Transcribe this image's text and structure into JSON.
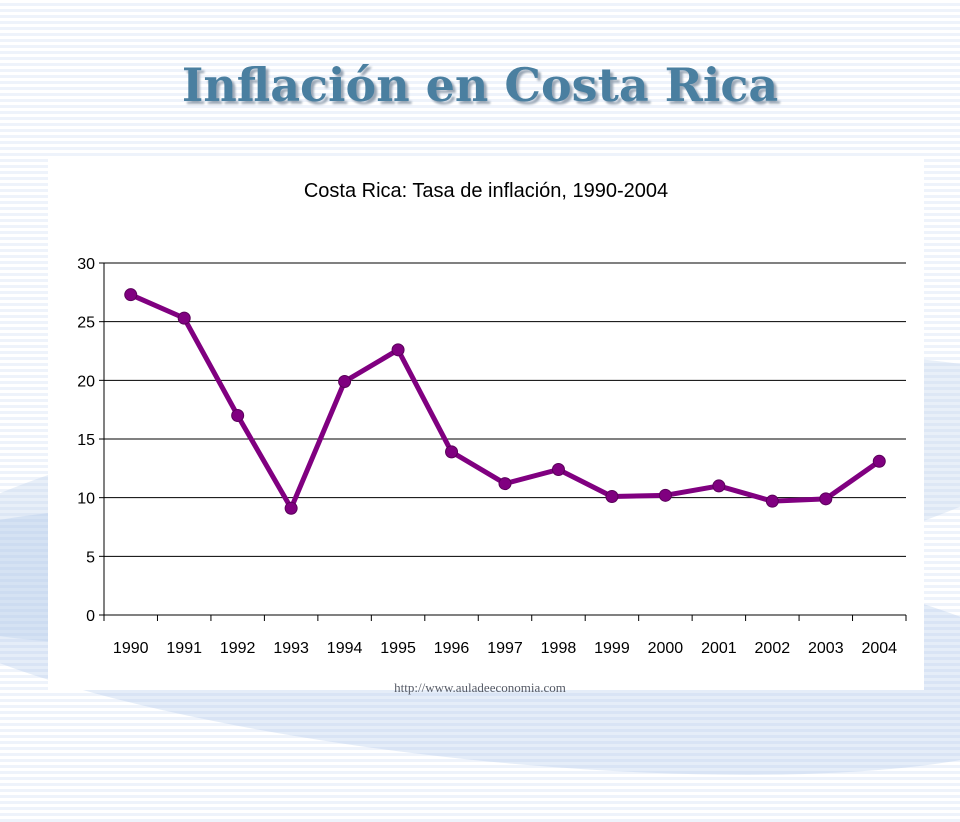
{
  "slide": {
    "title": "Inflación en Costa Rica",
    "footer": "http://www.auladeeconomia.com"
  },
  "chart_data": {
    "type": "line",
    "title": "Costa Rica: Tasa de inflación, 1990-2004",
    "xlabel": "",
    "ylabel": "",
    "categories": [
      "1990",
      "1991",
      "1992",
      "1993",
      "1994",
      "1995",
      "1996",
      "1997",
      "1998",
      "1999",
      "2000",
      "2001",
      "2002",
      "2003",
      "2004"
    ],
    "series": [
      {
        "values": [
          27.3,
          25.3,
          17.0,
          9.1,
          19.9,
          22.6,
          13.9,
          11.2,
          12.4,
          10.1,
          10.2,
          11.0,
          9.7,
          9.9,
          13.1
        ]
      }
    ],
    "ylim": [
      0,
      30
    ],
    "yticks": [
      "0",
      "5",
      "10",
      "15",
      "20",
      "25",
      "30"
    ],
    "grid": true,
    "legend": false,
    "colors": {
      "line": "#800080",
      "grid": "#000000",
      "axis": "#000000"
    }
  }
}
